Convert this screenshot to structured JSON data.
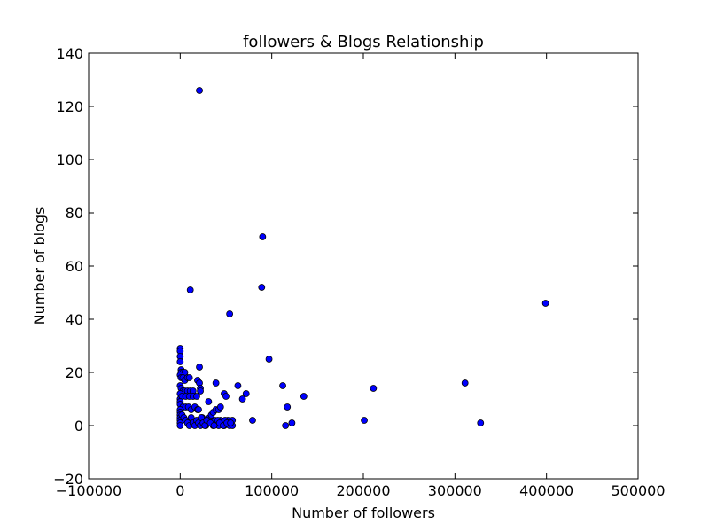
{
  "chart_data": {
    "type": "scatter",
    "title": "followers & Blogs Relationship",
    "xlabel": "Number of followers",
    "ylabel": "Number of blogs",
    "xlim": [
      -100000,
      500000
    ],
    "ylim": [
      -20,
      140
    ],
    "xticks": [
      -100000,
      0,
      100000,
      200000,
      300000,
      400000,
      500000
    ],
    "xtick_labels": [
      "−100000",
      "0",
      "100000",
      "200000",
      "300000",
      "400000",
      "500000"
    ],
    "yticks": [
      -20,
      0,
      20,
      40,
      60,
      80,
      100,
      120,
      140
    ],
    "ytick_labels": [
      "−20",
      "0",
      "20",
      "40",
      "60",
      "80",
      "100",
      "120",
      "140"
    ],
    "grid": false,
    "marker_color": "#0000ff",
    "marker_edge_color": "#000000",
    "points": [
      [
        21000,
        126
      ],
      [
        90000,
        71
      ],
      [
        89000,
        52
      ],
      [
        11000,
        51
      ],
      [
        54000,
        42
      ],
      [
        399000,
        46
      ],
      [
        97000,
        25
      ],
      [
        311000,
        16
      ],
      [
        112000,
        15
      ],
      [
        211000,
        14
      ],
      [
        135000,
        11
      ],
      [
        117000,
        7
      ],
      [
        201000,
        2
      ],
      [
        328000,
        1
      ],
      [
        122000,
        1
      ],
      [
        79000,
        2
      ],
      [
        115000,
        0
      ],
      [
        0,
        29
      ],
      [
        0,
        28
      ],
      [
        0,
        26
      ],
      [
        0,
        24
      ],
      [
        1000,
        21
      ],
      [
        1000,
        20
      ],
      [
        3000,
        20
      ],
      [
        5000,
        20
      ],
      [
        0,
        19
      ],
      [
        1000,
        18
      ],
      [
        3000,
        18
      ],
      [
        5000,
        17
      ],
      [
        8000,
        18
      ],
      [
        10000,
        18
      ],
      [
        0,
        15
      ],
      [
        1000,
        14
      ],
      [
        3000,
        13
      ],
      [
        5000,
        13
      ],
      [
        8000,
        13
      ],
      [
        11000,
        13
      ],
      [
        14000,
        13
      ],
      [
        0,
        12
      ],
      [
        0,
        10
      ],
      [
        2000,
        11
      ],
      [
        6000,
        11
      ],
      [
        10000,
        11
      ],
      [
        14000,
        11
      ],
      [
        18000,
        11
      ],
      [
        0,
        9
      ],
      [
        0,
        8
      ],
      [
        3000,
        7
      ],
      [
        6000,
        7
      ],
      [
        9000,
        7
      ],
      [
        12000,
        6
      ],
      [
        16000,
        7
      ],
      [
        19000,
        6
      ],
      [
        0,
        6
      ],
      [
        0,
        5
      ],
      [
        0,
        4
      ],
      [
        0,
        3
      ],
      [
        0,
        2
      ],
      [
        0,
        1
      ],
      [
        0,
        0
      ],
      [
        2000,
        4
      ],
      [
        4000,
        3
      ],
      [
        6000,
        2
      ],
      [
        8000,
        1
      ],
      [
        10000,
        0
      ],
      [
        12000,
        3
      ],
      [
        14000,
        1
      ],
      [
        16000,
        0
      ],
      [
        18000,
        2
      ],
      [
        20000,
        1
      ],
      [
        22000,
        0
      ],
      [
        24000,
        3
      ],
      [
        26000,
        2
      ],
      [
        28000,
        0
      ],
      [
        30000,
        1
      ],
      [
        32000,
        3
      ],
      [
        34000,
        1
      ],
      [
        36000,
        0
      ],
      [
        38000,
        2
      ],
      [
        40000,
        1
      ],
      [
        42000,
        0
      ],
      [
        44000,
        2
      ],
      [
        46000,
        1
      ],
      [
        48000,
        0
      ],
      [
        50000,
        1
      ],
      [
        52000,
        2
      ],
      [
        54000,
        0
      ],
      [
        57000,
        2
      ],
      [
        57000,
        0
      ],
      [
        21000,
        22
      ],
      [
        19000,
        17
      ],
      [
        21000,
        16
      ],
      [
        22000,
        14
      ],
      [
        22000,
        13
      ],
      [
        20000,
        6
      ],
      [
        31000,
        9
      ],
      [
        34000,
        4
      ],
      [
        36000,
        5
      ],
      [
        39000,
        6
      ],
      [
        42000,
        6
      ],
      [
        44000,
        7
      ],
      [
        39000,
        16
      ],
      [
        48000,
        12
      ],
      [
        50000,
        11
      ],
      [
        63000,
        15
      ],
      [
        68000,
        10
      ],
      [
        72000,
        12
      ],
      [
        23000,
        3
      ],
      [
        25000,
        1
      ],
      [
        27000,
        0
      ],
      [
        29000,
        2
      ],
      [
        33000,
        1
      ],
      [
        37000,
        0
      ],
      [
        41000,
        2
      ],
      [
        43000,
        1
      ],
      [
        47000,
        0
      ],
      [
        49000,
        2
      ],
      [
        51000,
        1
      ],
      [
        55000,
        1
      ]
    ]
  }
}
